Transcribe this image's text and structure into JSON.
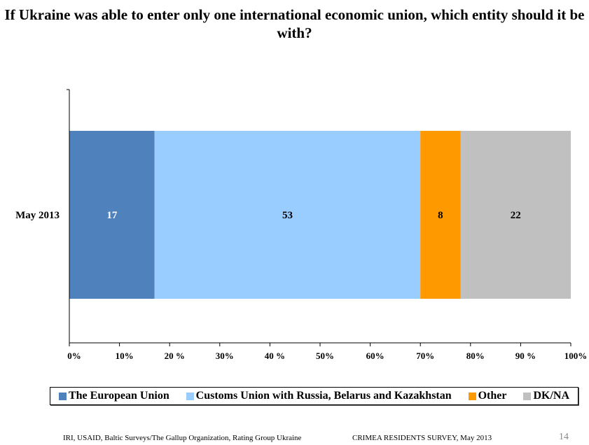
{
  "chart_data": {
    "type": "bar",
    "orientation": "horizontal-stacked-100",
    "title": "If Ukraine was able to enter only one international economic union, which entity should it be with?",
    "categories": [
      "May 2013"
    ],
    "series": [
      {
        "name": "The European Union",
        "values": [
          17
        ],
        "color": "#4f81bd",
        "label_color": "#ffffff"
      },
      {
        "name": "Customs Union with Russia, Belarus and Kazakhstan",
        "values": [
          53
        ],
        "color": "#99ccff",
        "label_color": "#000000"
      },
      {
        "name": "Other",
        "values": [
          8
        ],
        "color": "#ff9900",
        "label_color": "#000000"
      },
      {
        "name": "DK/NA",
        "values": [
          22
        ],
        "color": "#c0c0c0",
        "label_color": "#000000"
      }
    ],
    "xlim": [
      0,
      100
    ],
    "xticks": [
      0,
      10,
      20,
      30,
      40,
      50,
      60,
      70,
      80,
      90,
      100
    ],
    "xtick_labels": [
      "0%",
      "10%",
      "20 %",
      "30%",
      "40 %",
      "50%",
      "60%",
      "70%",
      "80%",
      "90 %",
      "100%"
    ],
    "grid": false,
    "legend": "bottom"
  },
  "footer": {
    "left": "IRI, USAID,  Baltic Surveys/The Gallup Organization, Rating Group Ukraine",
    "right": "CRIMEA RESIDENTS SURVEY, May 2013",
    "page": "14"
  }
}
